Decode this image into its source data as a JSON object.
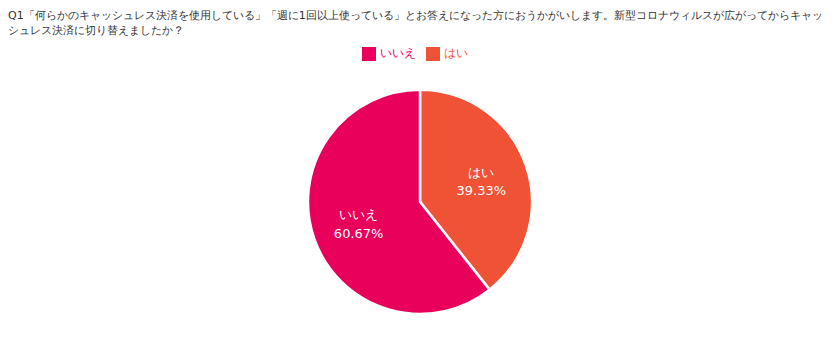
{
  "chart_data": {
    "type": "pie",
    "title": "Q1「何らかのキャッシュレス決済を使用している」「週に1回以上使っている」とお答えになった方におうかがいします。新型コロナウィルスが広がってからキャッシュレス決済に切り替えましたか？",
    "categories": [
      "はい",
      "いいえ"
    ],
    "values": [
      39.33,
      60.67
    ],
    "value_labels": [
      "39.33%",
      "60.67%"
    ],
    "colors": [
      "#f05235",
      "#e8005a"
    ],
    "data_labels": true,
    "legend": "top"
  }
}
